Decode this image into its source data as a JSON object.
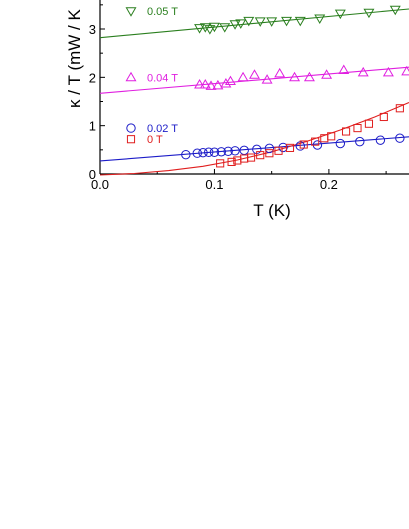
{
  "chart_data": {
    "type": "scatter",
    "title": "",
    "xlabel": "T (K)",
    "ylabel": "κ / T (mW / K",
    "xlim": [
      0.0,
      0.27
    ],
    "ylim": [
      0,
      3.6
    ],
    "xticks": [
      "0.0",
      "0.1",
      "0.2"
    ],
    "xtick_values": [
      0.0,
      0.1,
      0.2
    ],
    "yticks": [
      "0",
      "1",
      "2",
      "3"
    ],
    "ytick_values": [
      0,
      1,
      2,
      3
    ],
    "grid": false,
    "series": [
      {
        "name": "0.05 T",
        "marker": "triangle-down",
        "color": "#2a7f1e",
        "fit": [
          2.82,
          2.2
        ],
        "x": [
          0.087,
          0.092,
          0.096,
          0.1,
          0.109,
          0.118,
          0.123,
          0.13,
          0.14,
          0.15,
          0.163,
          0.175,
          0.192,
          0.21,
          0.235,
          0.258
        ],
        "y": [
          3.02,
          3.04,
          3.0,
          3.05,
          3.04,
          3.1,
          3.12,
          3.17,
          3.16,
          3.16,
          3.17,
          3.17,
          3.22,
          3.32,
          3.34,
          3.4
        ]
      },
      {
        "name": "0.04 T",
        "marker": "triangle-up",
        "color": "#e01fe0",
        "fit": [
          1.67,
          2.0
        ],
        "x": [
          0.087,
          0.092,
          0.097,
          0.103,
          0.11,
          0.114,
          0.125,
          0.135,
          0.146,
          0.157,
          0.17,
          0.183,
          0.198,
          0.213,
          0.23,
          0.252,
          0.268
        ],
        "y": [
          1.85,
          1.85,
          1.82,
          1.83,
          1.87,
          1.92,
          2.0,
          2.05,
          1.95,
          2.08,
          2.0,
          2.0,
          2.05,
          2.15,
          2.1,
          2.1,
          2.12
        ]
      },
      {
        "name": "0.02 T",
        "marker": "circle",
        "color": "#1c1cc8",
        "fit": [
          0.27,
          1.85
        ],
        "x": [
          0.075,
          0.085,
          0.09,
          0.095,
          0.1,
          0.106,
          0.112,
          0.118,
          0.126,
          0.137,
          0.148,
          0.16,
          0.175,
          0.19,
          0.21,
          0.227,
          0.245,
          0.262
        ],
        "y": [
          0.4,
          0.43,
          0.44,
          0.45,
          0.45,
          0.46,
          0.47,
          0.48,
          0.49,
          0.51,
          0.53,
          0.55,
          0.58,
          0.6,
          0.63,
          0.67,
          0.7,
          0.74
        ]
      },
      {
        "name": "0 T",
        "marker": "square",
        "color": "#e01e1e",
        "fit_curve": [
          [
            0.0,
            -0.02
          ],
          [
            0.03,
            0.01
          ],
          [
            0.06,
            0.07
          ],
          [
            0.09,
            0.16
          ],
          [
            0.12,
            0.29
          ],
          [
            0.15,
            0.46
          ],
          [
            0.18,
            0.67
          ],
          [
            0.21,
            0.91
          ],
          [
            0.24,
            1.18
          ],
          [
            0.27,
            1.48
          ]
        ],
        "x": [
          0.105,
          0.115,
          0.12,
          0.126,
          0.132,
          0.14,
          0.148,
          0.156,
          0.166,
          0.178,
          0.188,
          0.196,
          0.202,
          0.215,
          0.225,
          0.235,
          0.248,
          0.262
        ],
        "y": [
          0.22,
          0.25,
          0.28,
          0.32,
          0.34,
          0.39,
          0.43,
          0.48,
          0.54,
          0.61,
          0.67,
          0.74,
          0.78,
          0.88,
          0.95,
          1.04,
          1.18,
          1.36
        ]
      }
    ],
    "legend": [
      {
        "name": "0.05 T",
        "marker": "triangle-down",
        "color": "#2a7f1e",
        "y": 3.37
      },
      {
        "name": "0.04 T",
        "marker": "triangle-up",
        "color": "#e01fe0",
        "y": 2.0
      },
      {
        "name": "0.02 T",
        "marker": "circle",
        "color": "#1c1cc8",
        "y": 0.95
      },
      {
        "name": "0 T",
        "marker": "square",
        "color": "#e01e1e",
        "y": 0.72
      }
    ]
  }
}
